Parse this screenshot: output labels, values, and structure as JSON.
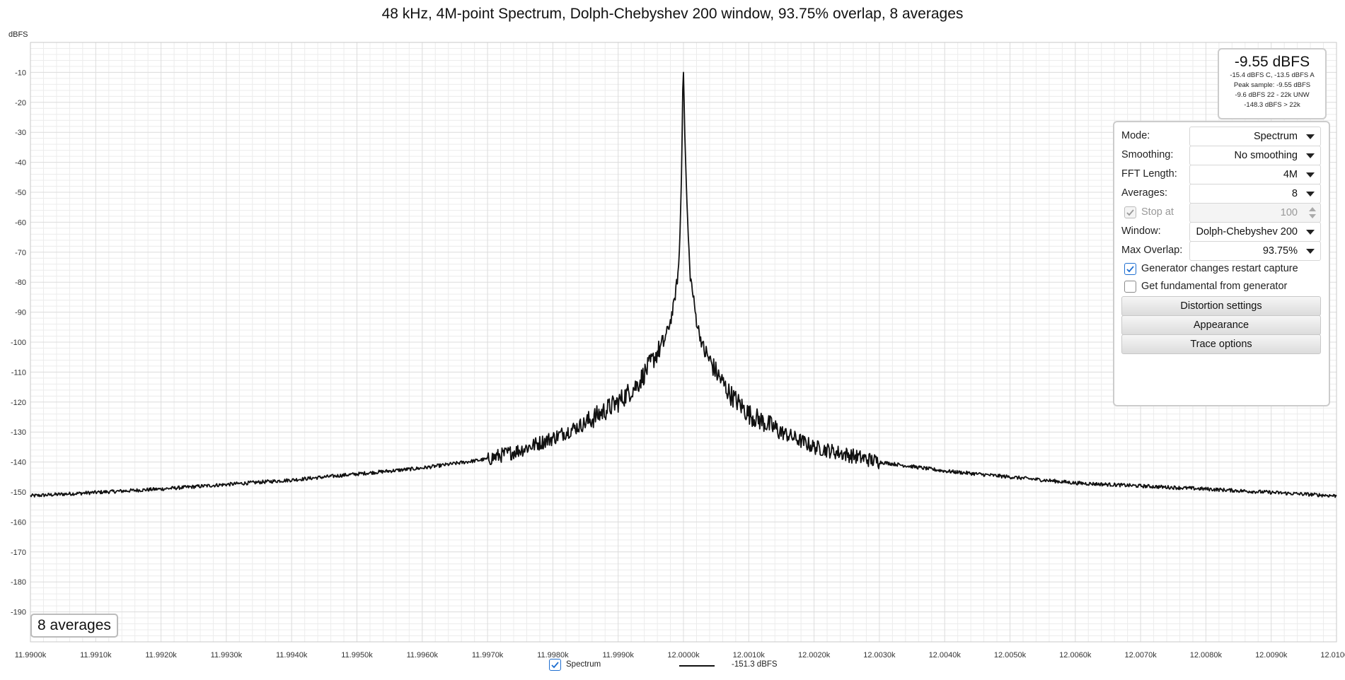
{
  "chart_data": {
    "type": "line",
    "title": "48 kHz, 4M-point Spectrum, Dolph-Chebyshev 200 window, 93.75% overlap, 8 averages",
    "ylabel": "dBFS",
    "xlabel": "",
    "xlim": [
      11.99,
      12.01
    ],
    "ylim": [
      -200,
      0
    ],
    "x_unit": "kHz",
    "y_ticks": [
      -10,
      -20,
      -30,
      -40,
      -50,
      -60,
      -70,
      -80,
      -90,
      -100,
      -110,
      -120,
      -130,
      -140,
      -150,
      -160,
      -170,
      -180,
      -190
    ],
    "y_tick_labels": [
      "-10",
      "-20",
      "-30",
      "-40",
      "-50",
      "-60",
      "-70",
      "-80",
      "-90",
      "-100",
      "-110",
      "-120",
      "-130",
      "-140",
      "-150",
      "-160",
      "-170",
      "-180",
      "-190"
    ],
    "x_ticks": [
      11.99,
      11.991,
      11.992,
      11.993,
      11.994,
      11.995,
      11.996,
      11.997,
      11.998,
      11.999,
      12.0,
      12.001,
      12.002,
      12.003,
      12.004,
      12.005,
      12.006,
      12.007,
      12.008,
      12.009,
      12.01
    ],
    "x_tick_labels": [
      "11.9900k",
      "11.9910k",
      "11.9920k",
      "11.9930k",
      "11.9940k",
      "11.9950k",
      "11.9960k",
      "11.9970k",
      "11.9980k",
      "11.9990k",
      "12.0000k",
      "12.0010k",
      "12.0020k",
      "12.0030k",
      "12.0040k",
      "12.0050k",
      "12.0060k",
      "12.0070k",
      "12.0080k",
      "12.0090k",
      "12.0100k"
    ],
    "grid": true,
    "legend_position": "bottom-center",
    "series": [
      {
        "name": "Spectrum",
        "color": "#111111",
        "x": [
          11.99,
          11.992,
          11.994,
          11.995,
          11.996,
          11.997,
          11.9975,
          11.998,
          11.9985,
          11.999,
          11.9993,
          11.9995,
          11.9997,
          11.9998,
          11.99985,
          11.9999,
          11.99993,
          11.99995,
          11.99997,
          11.99999,
          12.0,
          12.00002,
          12.00005,
          12.00008,
          12.0001,
          12.00015,
          12.0002,
          12.0003,
          12.0005,
          12.0007,
          12.001,
          12.0015,
          12.002,
          12.003,
          12.004,
          12.005,
          12.006,
          12.008,
          12.01
        ],
        "y": [
          -151.3,
          -149,
          -146,
          -144,
          -142,
          -139,
          -136,
          -132,
          -127,
          -120,
          -114,
          -107,
          -100,
          -93,
          -88,
          -80,
          -74,
          -62,
          -44,
          -15,
          -10,
          -30,
          -52,
          -68,
          -77,
          -85,
          -93,
          -102,
          -110,
          -117,
          -124,
          -130,
          -135,
          -140,
          -143,
          -145,
          -147,
          -149,
          -151.3
        ]
      }
    ]
  },
  "overlay": {
    "averages_label": "8 averages"
  },
  "readout": {
    "main": "-9.55 dBFS",
    "line1": "-15.4 dBFS C, -13.5 dBFS A",
    "line2": "Peak sample: -9.55 dBFS",
    "line3": "-9.6 dBFS 22 - 22k UNW",
    "line4": "-148.3 dBFS > 22k"
  },
  "panel": {
    "mode": {
      "label": "Mode:",
      "value": "Spectrum"
    },
    "smoothing": {
      "label": "Smoothing:",
      "value": "No smoothing"
    },
    "fft_length": {
      "label": "FFT Length:",
      "value": "4M"
    },
    "averages": {
      "label": "Averages:",
      "value": "8"
    },
    "stop_at": {
      "label": "Stop at",
      "value": "100",
      "checked": true,
      "enabled": false
    },
    "window": {
      "label": "Window:",
      "value": "Dolph-Chebyshev 200"
    },
    "max_overlap": {
      "label": "Max Overlap:",
      "value": "93.75%"
    },
    "gen_restart": {
      "label": "Generator changes restart capture",
      "checked": true
    },
    "get_fundamental": {
      "label": "Get fundamental from generator",
      "checked": false
    },
    "btn_distortion": "Distortion settings",
    "btn_appearance": "Appearance",
    "btn_trace": "Trace options"
  },
  "legend": {
    "name": "Spectrum",
    "value": "-151.3 dBFS",
    "checked": true
  },
  "colors": {
    "accent": "#1f6fd1",
    "trace": "#111111",
    "grid": "#dcdcdc"
  }
}
